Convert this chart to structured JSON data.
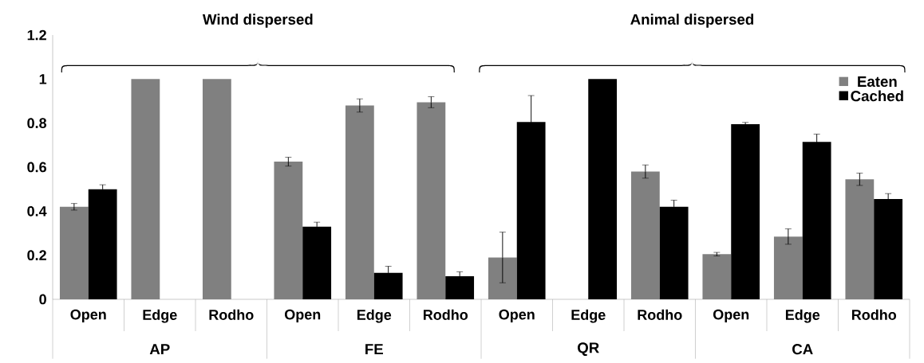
{
  "chart_data": {
    "type": "bar",
    "categories": [
      "Open",
      "Edge",
      "Rodho",
      "Open",
      "Edge",
      "Rodho",
      "Open",
      "Edge",
      "Rodho",
      "Open",
      "Edge",
      "Rodho"
    ],
    "series": [
      {
        "name": "Eaten",
        "color": "#808080",
        "values": [
          0.42,
          1.0,
          1.0,
          0.625,
          0.88,
          0.895,
          0.19,
          0,
          0.58,
          0.205,
          0.285,
          0.545
        ],
        "errors": [
          0.015,
          0,
          0,
          0.02,
          0.03,
          0.025,
          0.115,
          0,
          0.03,
          0.008,
          0.035,
          0.028
        ]
      },
      {
        "name": "Cached",
        "color": "#000000",
        "values": [
          0.5,
          0,
          0,
          0.33,
          0.12,
          0.105,
          0.805,
          1.0,
          0.42,
          0.795,
          0.715,
          0.455
        ],
        "errors": [
          0.02,
          0,
          0,
          0.02,
          0.03,
          0.02,
          0.12,
          0,
          0.03,
          0.008,
          0.035,
          0.025
        ]
      }
    ],
    "ylim": [
      0,
      1.2
    ],
    "yticks": [
      0,
      0.2,
      0.4,
      0.6,
      0.8,
      1,
      1.2
    ],
    "legend": "top right",
    "annotations": [
      "AP",
      "FE",
      "QR",
      "CA",
      "Wind dispersed",
      "Animal dispersed"
    ]
  }
}
